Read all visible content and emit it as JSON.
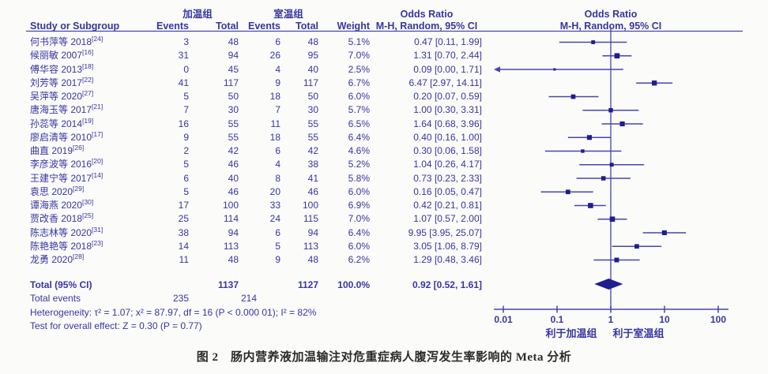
{
  "caption": "图 2　肠内营养液加温输注对危重症病人腹泻发生率影响的 Meta 分析",
  "colors": {
    "text_blue": "#3636a3",
    "line_blue": "#4646ad",
    "marker_navy": "#1e1e8f",
    "caption_dark": "#2b2b2b",
    "background": "#fbfbf9"
  },
  "header": {
    "group_warming": "加温组",
    "group_room": "室温组",
    "odds_ratio_text_col": "Odds Ratio",
    "odds_ratio_plot_col": "Odds Ratio",
    "study": "Study or Subgroup",
    "events": "Events",
    "total": "Total",
    "weight": "Weight",
    "mh_random_text_col": "M-H, Random, 95% CI",
    "mh_random_plot_col": "M-H, Random, 95% CI"
  },
  "chart_data": {
    "type": "forest",
    "x_axis": {
      "scale": "log10",
      "ticks": [
        0.01,
        0.1,
        1,
        10,
        100
      ],
      "tick_labels": [
        "0.01",
        "0.1",
        "1",
        "10",
        "100"
      ],
      "range": [
        0.01,
        100
      ],
      "center_value": 1
    },
    "favors_left": "利于加温组",
    "favors_right": "利于室温组",
    "studies": [
      {
        "name": "何书萍等 2018",
        "ref": "[24]",
        "e1": "3",
        "t1": "48",
        "e2": "6",
        "t2": "48",
        "weight": "5.1%",
        "or_text": "0.47 [0.11, 1.99]",
        "or": 0.47,
        "lo": 0.11,
        "hi": 1.99
      },
      {
        "name": "候丽敏 2007",
        "ref": "[16]",
        "e1": "31",
        "t1": "94",
        "e2": "26",
        "t2": "95",
        "weight": "7.0%",
        "or_text": "1.31 [0.70, 2.44]",
        "or": 1.31,
        "lo": 0.7,
        "hi": 2.44
      },
      {
        "name": "傅华容 2013",
        "ref": "[18]",
        "e1": "0",
        "t1": "45",
        "e2": "4",
        "t2": "40",
        "weight": "2.5%",
        "or_text": "0.09 [0.00, 1.71]",
        "or": 0.09,
        "lo": 0.0,
        "hi": 1.71,
        "arrow_left": true
      },
      {
        "name": "刘芳等 2017",
        "ref": "[22]",
        "e1": "41",
        "t1": "117",
        "e2": "9",
        "t2": "117",
        "weight": "6.7%",
        "or_text": "6.47 [2.97, 14.11]",
        "or": 6.47,
        "lo": 2.97,
        "hi": 14.11
      },
      {
        "name": "吴萍等 2020",
        "ref": "[27]",
        "e1": "5",
        "t1": "50",
        "e2": "18",
        "t2": "50",
        "weight": "6.0%",
        "or_text": "0.20 [0.07, 0.59]",
        "or": 0.2,
        "lo": 0.07,
        "hi": 0.59
      },
      {
        "name": "唐海玉等 2017",
        "ref": "[21]",
        "e1": "7",
        "t1": "30",
        "e2": "7",
        "t2": "30",
        "weight": "5.7%",
        "or_text": "1.00 [0.30, 3.31]",
        "or": 1.0,
        "lo": 0.3,
        "hi": 3.31
      },
      {
        "name": "孙蕊等 2014",
        "ref": "[19]",
        "e1": "16",
        "t1": "55",
        "e2": "11",
        "t2": "55",
        "weight": "6.5%",
        "or_text": "1.64 [0.68, 3.96]",
        "or": 1.64,
        "lo": 0.68,
        "hi": 3.96
      },
      {
        "name": "廖启清等 2010",
        "ref": "[17]",
        "e1": "9",
        "t1": "55",
        "e2": "18",
        "t2": "55",
        "weight": "6.4%",
        "or_text": "0.40 [0.16, 1.00]",
        "or": 0.4,
        "lo": 0.16,
        "hi": 1.0
      },
      {
        "name": "曲直 2019",
        "ref": "[26]",
        "e1": "2",
        "t1": "42",
        "e2": "6",
        "t2": "42",
        "weight": "4.6%",
        "or_text": "0.30 [0.06, 1.58]",
        "or": 0.3,
        "lo": 0.06,
        "hi": 1.58
      },
      {
        "name": "李彦波等 2016",
        "ref": "[20]",
        "e1": "5",
        "t1": "46",
        "e2": "4",
        "t2": "38",
        "weight": "5.2%",
        "or_text": "1.04 [0.26, 4.17]",
        "or": 1.04,
        "lo": 0.26,
        "hi": 4.17
      },
      {
        "name": "王建宁等 2017",
        "ref": "[14]",
        "e1": "6",
        "t1": "40",
        "e2": "8",
        "t2": "41",
        "weight": "5.8%",
        "or_text": "0.73 [0.23, 2.33]",
        "or": 0.73,
        "lo": 0.23,
        "hi": 2.33
      },
      {
        "name": "袁思 2020",
        "ref": "[29]",
        "e1": "5",
        "t1": "46",
        "e2": "20",
        "t2": "46",
        "weight": "6.0%",
        "or_text": "0.16 [0.05, 0.47]",
        "or": 0.16,
        "lo": 0.05,
        "hi": 0.47
      },
      {
        "name": "谭海燕 2020",
        "ref": "[30]",
        "e1": "17",
        "t1": "100",
        "e2": "33",
        "t2": "100",
        "weight": "6.9%",
        "or_text": "0.42 [0.21, 0.81]",
        "or": 0.42,
        "lo": 0.21,
        "hi": 0.81
      },
      {
        "name": "贾改香 2018",
        "ref": "[25]",
        "e1": "25",
        "t1": "114",
        "e2": "24",
        "t2": "115",
        "weight": "7.0%",
        "or_text": "1.07 [0.57, 2.00]",
        "or": 1.07,
        "lo": 0.57,
        "hi": 2.0
      },
      {
        "name": "陈志林等 2020",
        "ref": "[31]",
        "e1": "38",
        "t1": "94",
        "e2": "6",
        "t2": "94",
        "weight": "6.4%",
        "or_text": "9.95 [3.95, 25.07]",
        "or": 9.95,
        "lo": 3.95,
        "hi": 25.07
      },
      {
        "name": "陈艳艳等 2018",
        "ref": "[23]",
        "e1": "14",
        "t1": "113",
        "e2": "5",
        "t2": "113",
        "weight": "6.0%",
        "or_text": "3.05 [1.06, 8.79]",
        "or": 3.05,
        "lo": 1.06,
        "hi": 8.79
      },
      {
        "name": "龙勇 2020",
        "ref": "[28]",
        "e1": "11",
        "t1": "48",
        "e2": "9",
        "t2": "48",
        "weight": "6.2%",
        "or_text": "1.29 [0.48, 3.46]",
        "or": 1.29,
        "lo": 0.48,
        "hi": 3.46
      }
    ],
    "total_row": {
      "label": "Total (95% CI)",
      "t1": "1137",
      "t2": "1127",
      "weight": "100.0%",
      "or_text": "0.92 [0.52, 1.61]",
      "or": 0.92,
      "lo": 0.52,
      "hi": 1.61
    },
    "total_events": {
      "label": "Total events",
      "e1": "235",
      "e2": "214"
    },
    "heterogeneity": "Heterogeneity: τ² = 1.07; x² = 87.97, df = 16 (P < 0.000 01); I² = 82%",
    "overall_effect": "Test for overall effect: Z = 0.30 (P = 0.77)"
  }
}
